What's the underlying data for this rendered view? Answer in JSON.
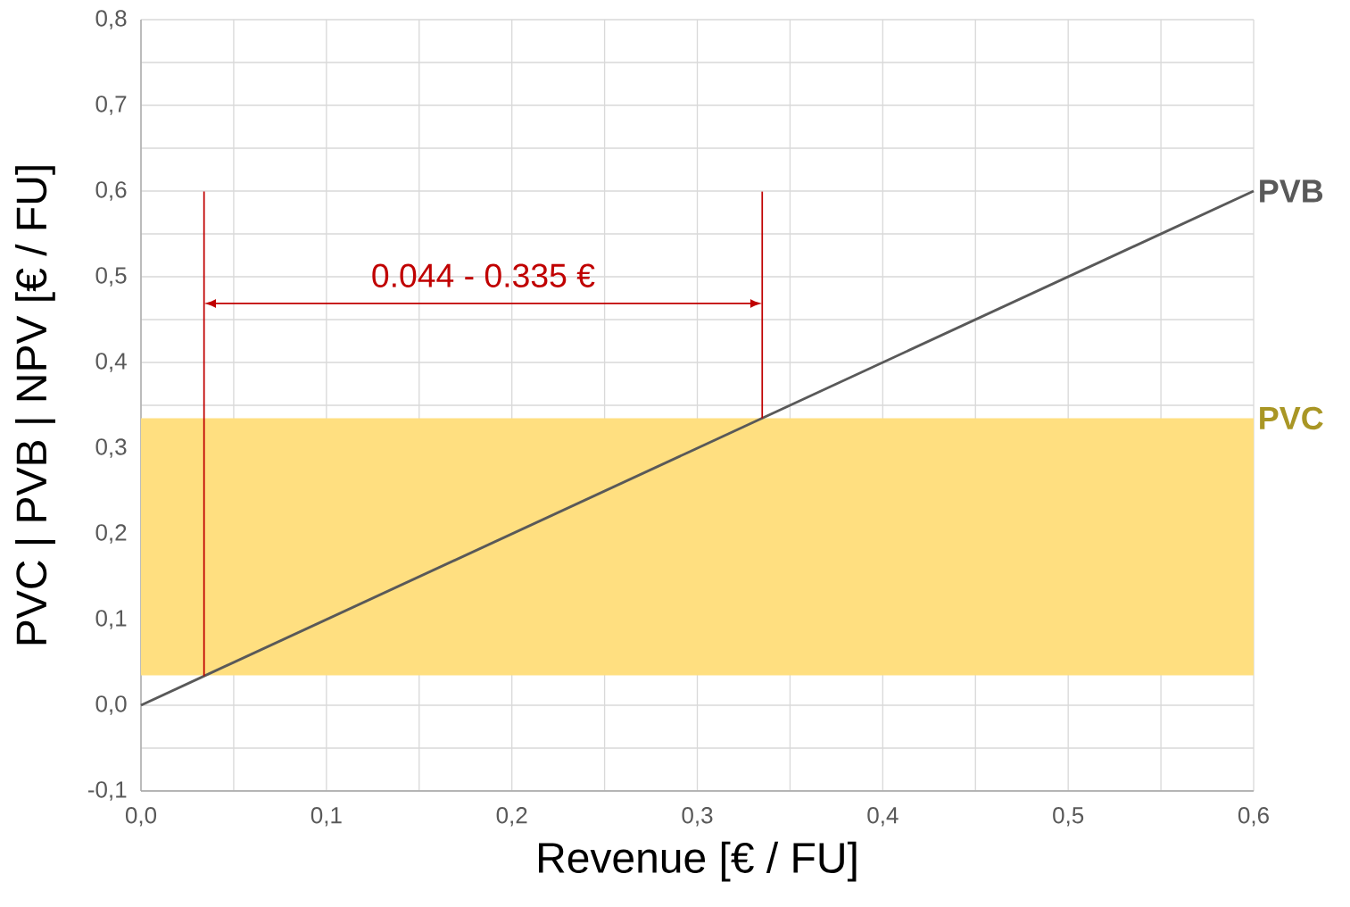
{
  "chart_data": {
    "type": "line",
    "xlabel": "Revenue [€ / FU]",
    "ylabel": "PVC | PVB | NPV [€ / FU]",
    "x": [
      0,
      0.6
    ],
    "series": [
      {
        "name": "PVB",
        "color": "#595959",
        "values": [
          0,
          0.6
        ]
      }
    ],
    "xlim": [
      0,
      0.6
    ],
    "ylim": [
      -0.1,
      0.8
    ],
    "xticks": [
      {
        "value": 0,
        "label": "0,0"
      },
      {
        "value": 0.1,
        "label": "0,1"
      },
      {
        "value": 0.2,
        "label": "0,2"
      },
      {
        "value": 0.3,
        "label": "0,3"
      },
      {
        "value": 0.4,
        "label": "0,4"
      },
      {
        "value": 0.5,
        "label": "0,5"
      },
      {
        "value": 0.6,
        "label": "0,6"
      }
    ],
    "yticks": [
      {
        "value": -0.1,
        "label": "-0,1"
      },
      {
        "value": 0,
        "label": "0,0"
      },
      {
        "value": 0.1,
        "label": "0,1"
      },
      {
        "value": 0.2,
        "label": "0,2"
      },
      {
        "value": 0.3,
        "label": "0,3"
      },
      {
        "value": 0.4,
        "label": "0,4"
      },
      {
        "value": 0.5,
        "label": "0,5"
      },
      {
        "value": 0.6,
        "label": "0,6"
      },
      {
        "value": 0.7,
        "label": "0,7"
      },
      {
        "value": 0.8,
        "label": "0,8"
      }
    ],
    "grid": true,
    "bands": [
      {
        "axis": "y",
        "from": 0.035,
        "to": 0.335,
        "label": "PVC",
        "color": "#ffdf80"
      }
    ],
    "ref_lines": [
      {
        "axis": "x",
        "value": 0.034,
        "color": "#c00000"
      },
      {
        "axis": "x",
        "value": 0.335,
        "color": "#c00000"
      }
    ],
    "annotations": [
      "0.044 - 0.335 €"
    ]
  }
}
